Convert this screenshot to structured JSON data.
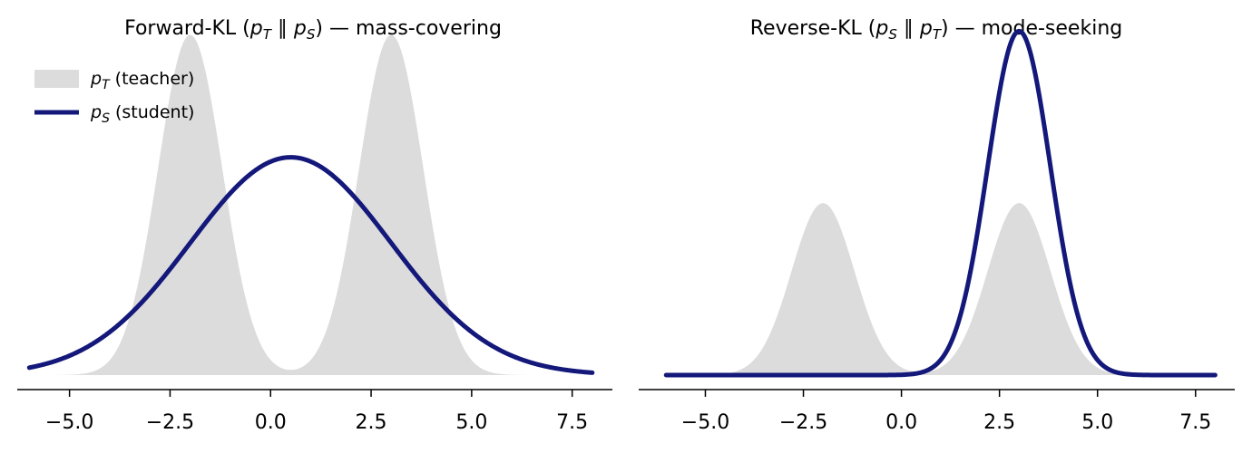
{
  "chart_data": [
    {
      "type": "line",
      "title": {
        "prefix": "Forward-KL (",
        "p1": "p",
        "p1_sub": "T",
        "sep": "∥",
        "p2": "p",
        "p2_sub": "S",
        "suffix": ") — mass-covering"
      },
      "xlim": [
        -6.3,
        8.5
      ],
      "ylim": [
        0,
        0.235
      ],
      "xticks": [
        -5.0,
        -2.5,
        0.0,
        2.5,
        5.0,
        7.5
      ],
      "xtick_labels": [
        "−5.0",
        "−2.5",
        "0.0",
        "2.5",
        "5.0",
        "7.5"
      ],
      "teacher": {
        "means": [
          -2,
          3
        ],
        "sd": 0.8,
        "weights": [
          0.5,
          0.5
        ]
      },
      "student": {
        "mean": 0.5,
        "sd": 2.5
      },
      "legend": {
        "position": "top-left",
        "entries": [
          {
            "symbol": "p",
            "sub": "T",
            "label": " (teacher)"
          },
          {
            "symbol": "p",
            "sub": "S",
            "label": " (student)"
          }
        ]
      }
    },
    {
      "type": "line",
      "title": {
        "prefix": "Reverse-KL (",
        "p1": "p",
        "p1_sub": "S",
        "sep": "∥",
        "p2": "p",
        "p2_sub": "T",
        "suffix": ") — mode-seeking"
      },
      "xlim": [
        -6.7,
        8.5
      ],
      "ylim": [
        0,
        0.465
      ],
      "xticks": [
        -5.0,
        -2.5,
        0.0,
        2.5,
        5.0,
        7.5
      ],
      "xtick_labels": [
        "−5.0",
        "−2.5",
        "0.0",
        "2.5",
        "5.0",
        "7.5"
      ],
      "teacher": {
        "means": [
          -2,
          3
        ],
        "sd": 0.8,
        "weights": [
          0.5,
          0.5
        ]
      },
      "student": {
        "mean": 3,
        "sd": 0.8
      }
    }
  ],
  "x_range": [
    -6,
    8
  ],
  "colors": {
    "teacher_fill": "#dcdcdc",
    "student_line": "#13187a"
  }
}
